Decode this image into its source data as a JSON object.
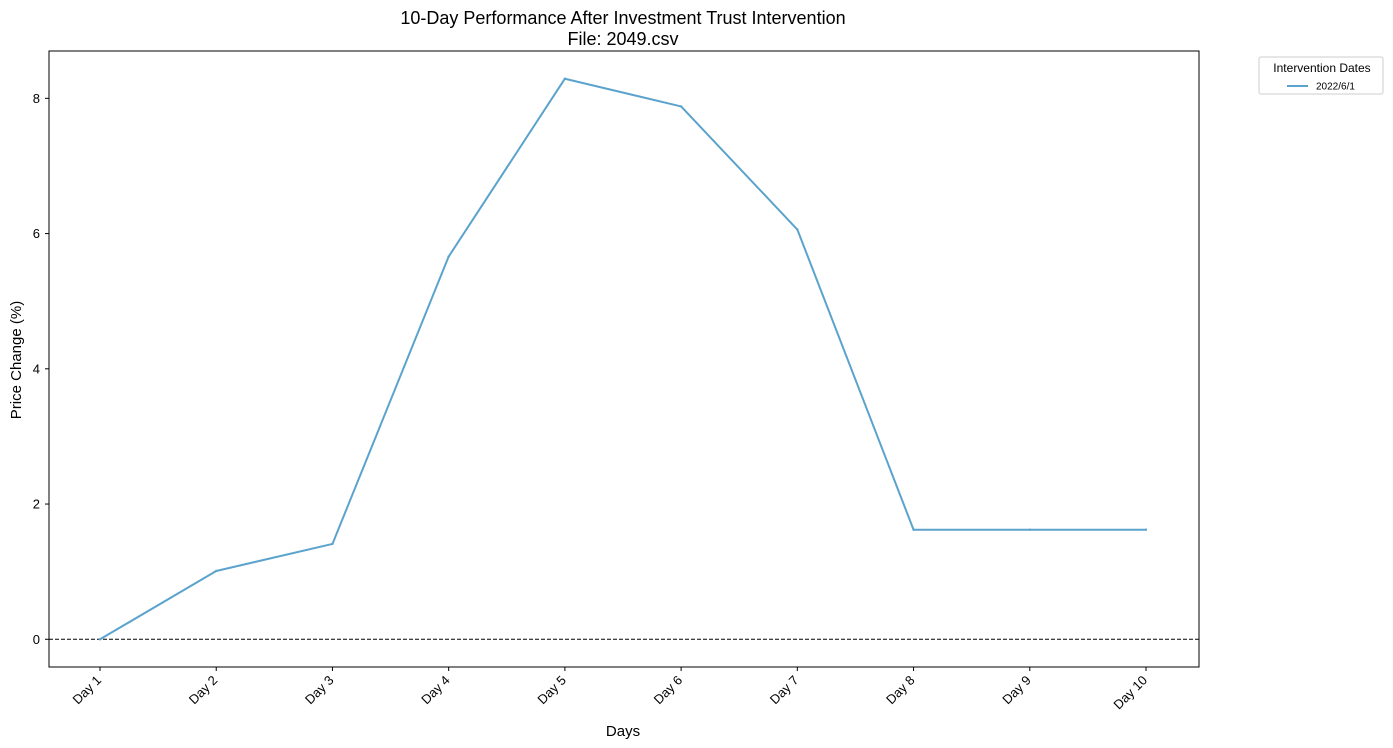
{
  "chart_data": {
    "type": "line",
    "title": "10-Day Performance After Investment Trust Intervention",
    "subtitle": "File: 2049.csv",
    "xlabel": "Days",
    "ylabel": "Price Change (%)",
    "categories": [
      "Day 1",
      "Day 2",
      "Day 3",
      "Day 4",
      "Day 5",
      "Day 6",
      "Day 7",
      "Day 8",
      "Day 9",
      "Day 10"
    ],
    "series": [
      {
        "name": "2022/6/1",
        "color": "#5ba3cc",
        "values": [
          0.0,
          1.01,
          1.41,
          5.66,
          8.29,
          7.88,
          6.06,
          1.62,
          1.62,
          1.62
        ]
      }
    ],
    "ylim": [
      -0.41,
      8.7
    ],
    "yticks": [
      0,
      2,
      4,
      6,
      8
    ],
    "reference_line": {
      "y": 0,
      "style": "dashed",
      "color": "#000000"
    },
    "grid": false,
    "legend": {
      "title": "Intervention Dates",
      "placement": "outside-top-right"
    }
  }
}
